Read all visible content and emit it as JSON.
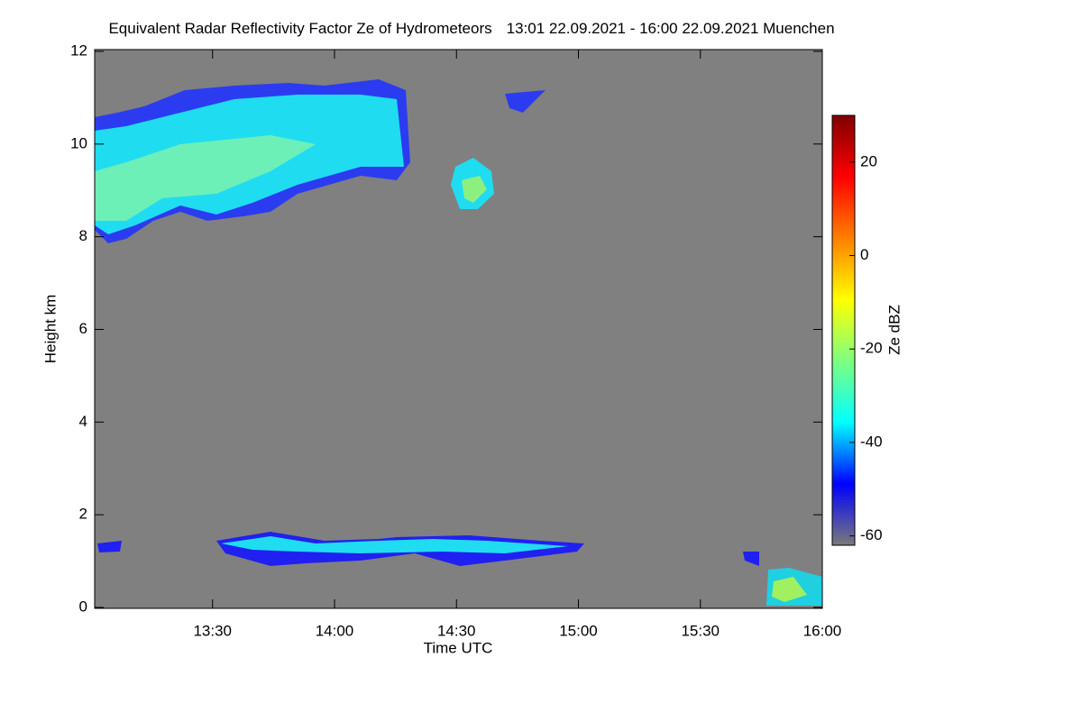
{
  "chart_data": {
    "type": "heatmap",
    "title": "Equivalent Radar Reflectivity Factor Ze of Hydrometeors",
    "subtitle": "13:01 22.09.2021 - 16:00 22.09.2021 Muenchen",
    "x_label": "Time UTC",
    "y_label": "Height km",
    "xlim": [
      781,
      960
    ],
    "xticks": [
      {
        "value": 810,
        "label": "13:30"
      },
      {
        "value": 840,
        "label": "14:00"
      },
      {
        "value": 870,
        "label": "14:30"
      },
      {
        "value": 900,
        "label": "15:00"
      },
      {
        "value": 930,
        "label": "15:30"
      },
      {
        "value": 960,
        "label": "16:00"
      }
    ],
    "ylim": [
      0,
      12
    ],
    "yticks": [
      0,
      2,
      4,
      6,
      8,
      10,
      12
    ],
    "background": "#808080",
    "colorbar": {
      "label": "Ze dBZ",
      "lim": [
        -62,
        30
      ],
      "ticks": [
        -60,
        -40,
        -20,
        0,
        20
      ],
      "colors": [
        "#7a7a7a",
        "#0000ff",
        "#00ffff",
        "#7fff7f",
        "#ffff00",
        "#ff7f00",
        "#ff0000",
        "#7f0000"
      ]
    }
  }
}
